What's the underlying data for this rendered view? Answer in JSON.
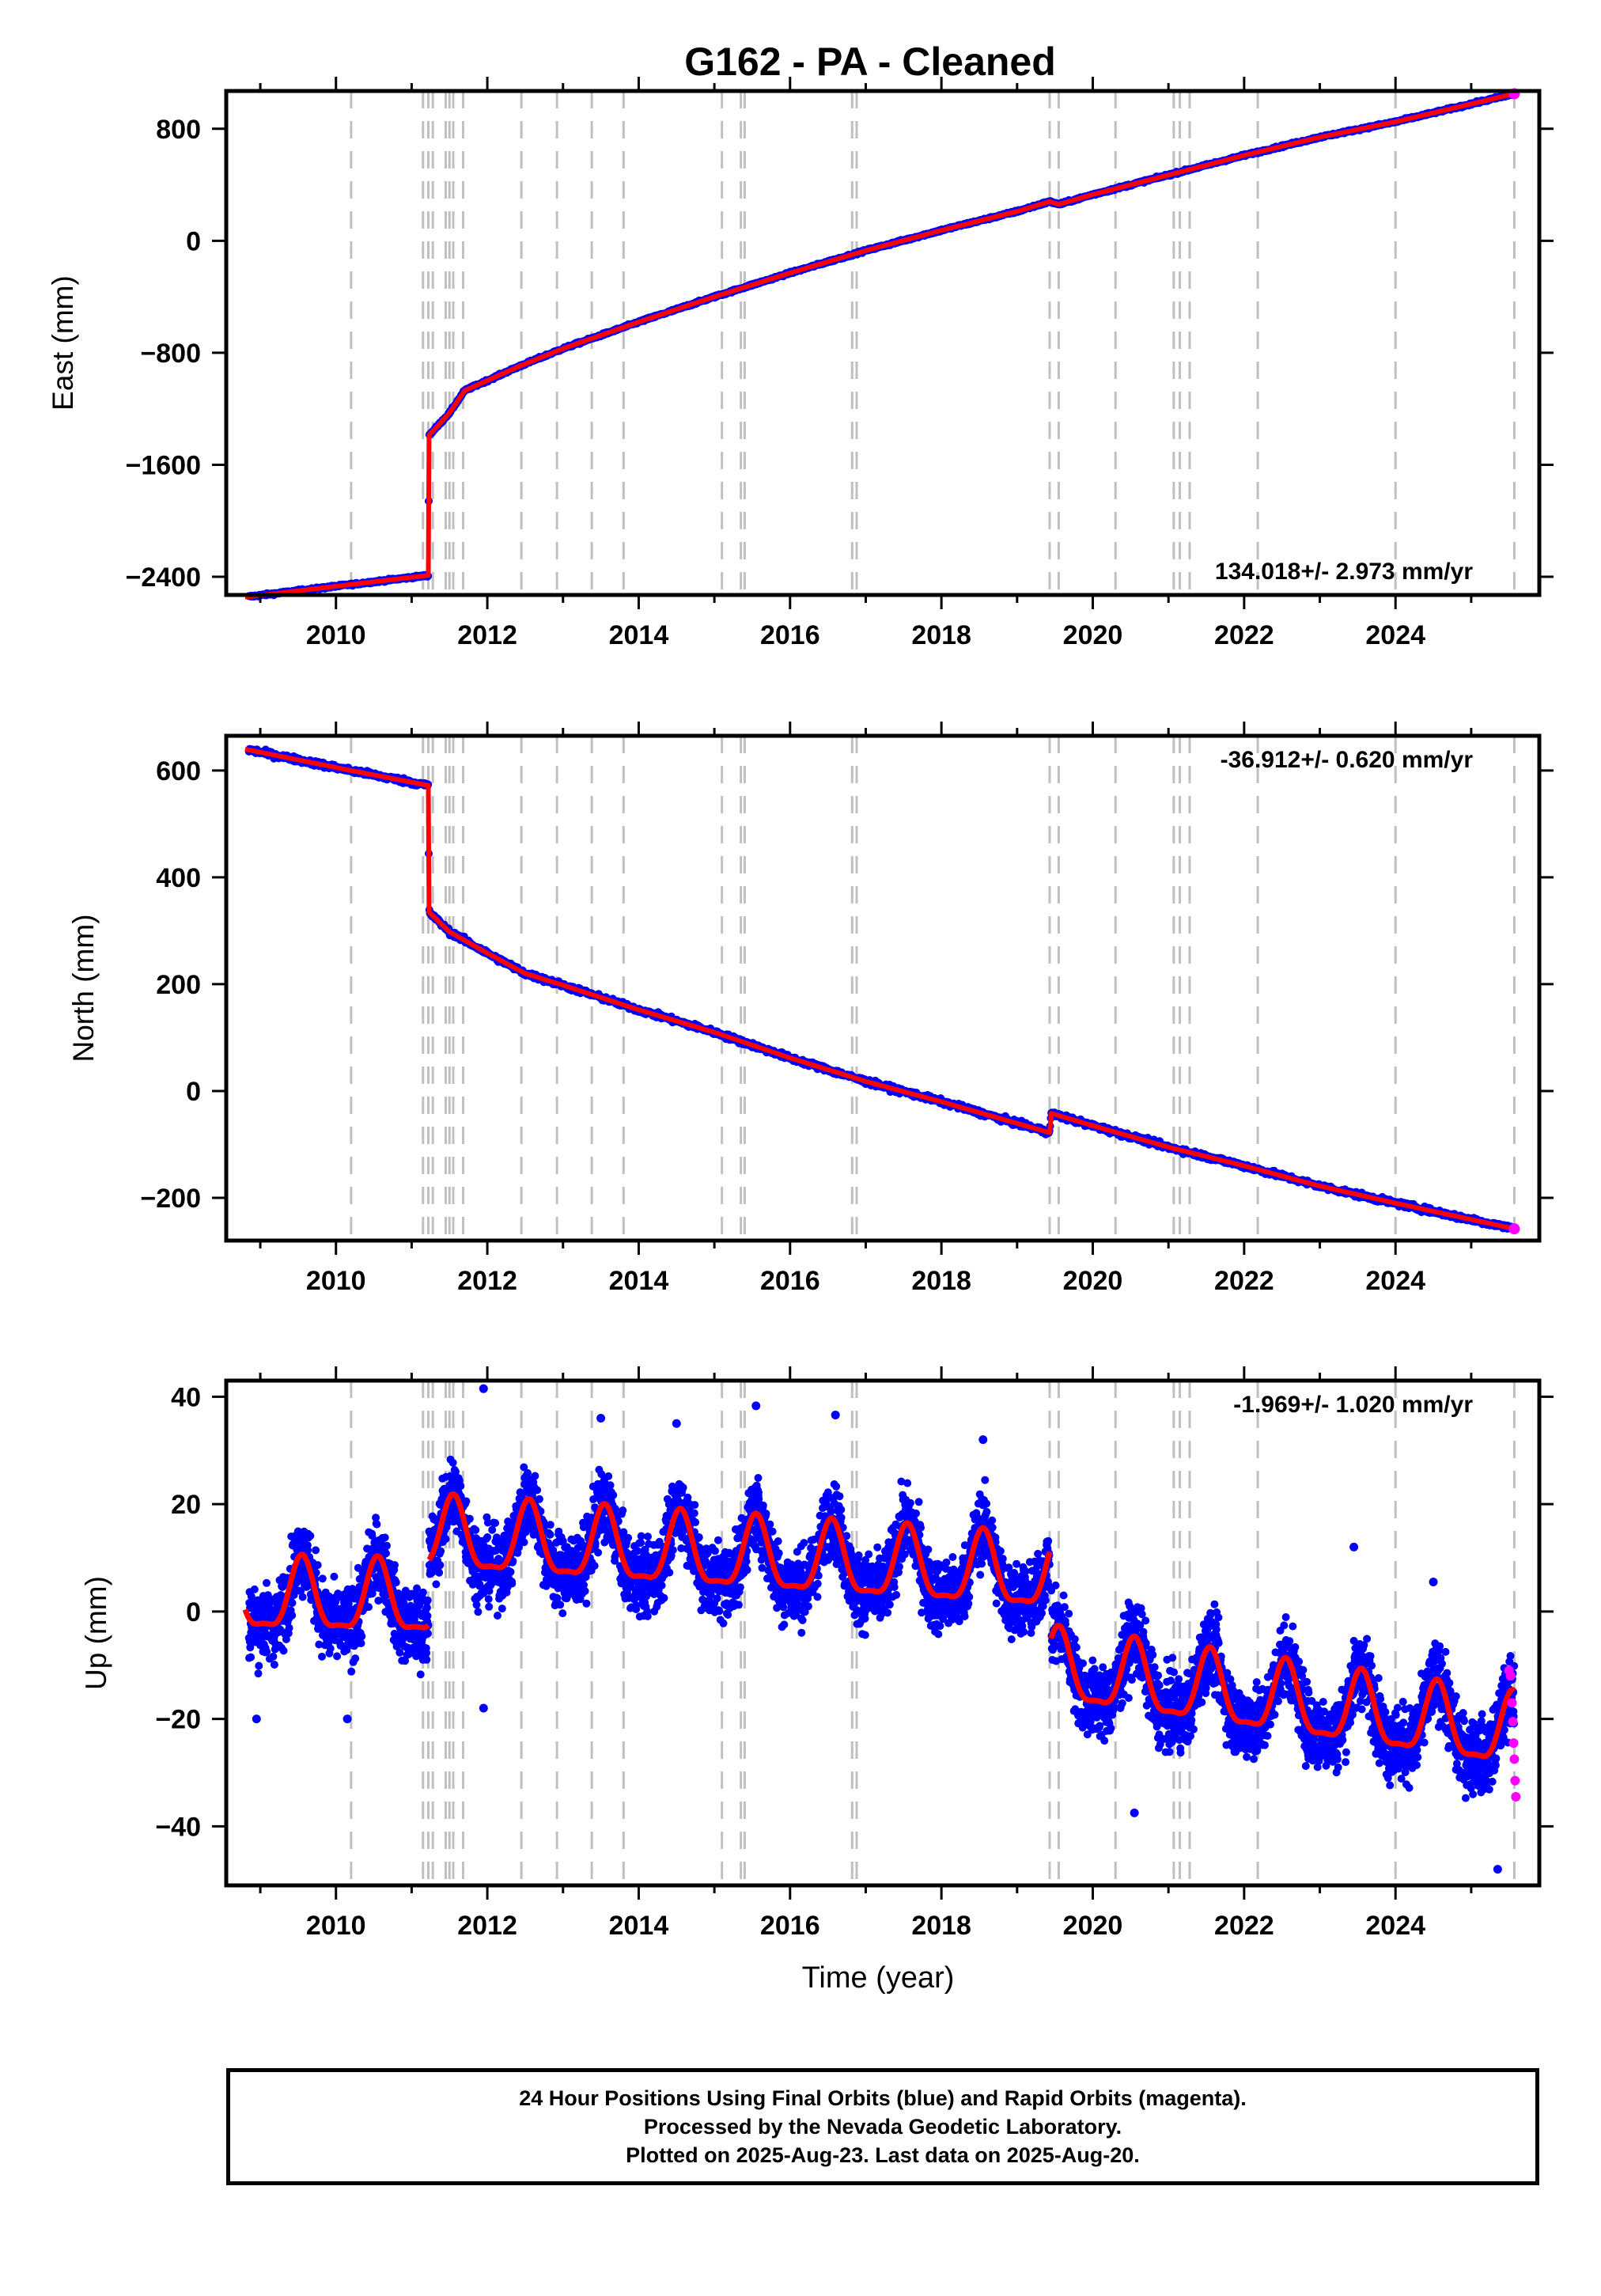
{
  "title": "G162  - PA - Cleaned",
  "colors": {
    "final_orbits": "#0000ff",
    "rapid_orbits": "#ff00ff",
    "model_fit": "#ff0000",
    "event_lines": "#c0c0c0",
    "frame": "#000000"
  },
  "xaxis": {
    "label": "Time (year)",
    "range": [
      2008.55,
      2025.9
    ],
    "ticks": [
      2010,
      2012,
      2014,
      2016,
      2018,
      2020,
      2022,
      2024
    ]
  },
  "event_lines": [
    2010.2,
    2011.15,
    2011.22,
    2011.28,
    2011.45,
    2011.5,
    2011.55,
    2011.68,
    2012.45,
    2012.92,
    2013.38,
    2013.8,
    2015.1,
    2015.35,
    2015.4,
    2016.82,
    2016.88,
    2019.43,
    2019.55,
    2020.3,
    2021.07,
    2021.15,
    2021.28,
    2022.18,
    2024.0,
    2025.57
  ],
  "chart_data": [
    {
      "type": "scatter",
      "panel": "east",
      "ylabel": "East (mm)",
      "ylim": [
        -2530,
        1070
      ],
      "yticks": [
        -2400,
        -1600,
        -800,
        0,
        800
      ],
      "velocity": "134.018+/- 2.973 mm/yr",
      "velocity_position": "bottom-right",
      "grid": false,
      "model_points": [
        [
          2008.8,
          -2545
        ],
        [
          2010.2,
          -2455
        ],
        [
          2011.22,
          -2390
        ],
        [
          2011.23,
          -1390
        ],
        [
          2011.5,
          -1230
        ],
        [
          2011.7,
          -1070
        ],
        [
          2012.45,
          -890
        ],
        [
          2013.0,
          -770
        ],
        [
          2014.0,
          -580
        ],
        [
          2015.0,
          -400
        ],
        [
          2016.0,
          -230
        ],
        [
          2017.0,
          -70
        ],
        [
          2018.0,
          75
        ],
        [
          2019.0,
          210
        ],
        [
          2019.43,
          280
        ],
        [
          2019.55,
          260
        ],
        [
          2020.0,
          330
        ],
        [
          2021.0,
          470
        ],
        [
          2022.0,
          610
        ],
        [
          2023.0,
          740
        ],
        [
          2024.0,
          850
        ],
        [
          2025.57,
          1050
        ]
      ]
    },
    {
      "type": "scatter",
      "panel": "north",
      "ylabel": "North (mm)",
      "ylim": [
        -280,
        665
      ],
      "yticks": [
        -200,
        0,
        200,
        400,
        600
      ],
      "velocity": "-36.912+/- 0.620 mm/yr",
      "velocity_position": "top-right",
      "grid": false,
      "model_points": [
        [
          2008.8,
          640
        ],
        [
          2010.2,
          600
        ],
        [
          2011.22,
          572
        ],
        [
          2011.23,
          335
        ],
        [
          2011.5,
          298
        ],
        [
          2012.0,
          258
        ],
        [
          2012.5,
          220
        ],
        [
          2013.0,
          198
        ],
        [
          2014.0,
          152
        ],
        [
          2015.0,
          110
        ],
        [
          2016.0,
          62
        ],
        [
          2017.0,
          18
        ],
        [
          2018.0,
          -20
        ],
        [
          2019.43,
          -78
        ],
        [
          2019.45,
          -42
        ],
        [
          2020.0,
          -65
        ],
        [
          2021.0,
          -105
        ],
        [
          2022.0,
          -140
        ],
        [
          2023.0,
          -178
        ],
        [
          2024.0,
          -210
        ],
        [
          2025.57,
          -258
        ]
      ]
    },
    {
      "type": "scatter",
      "panel": "up",
      "ylabel": "Up (mm)",
      "ylim": [
        -51,
        43
      ],
      "yticks": [
        -40,
        -20,
        0,
        20,
        40
      ],
      "velocity": "-1.969+/- 1.020 mm/yr",
      "velocity_position": "top-right",
      "grid": false,
      "model": {
        "segments": [
          {
            "start": 2008.8,
            "end": 2011.22,
            "offset": 2.0,
            "trend": -0.3,
            "ref": 2010.0
          },
          {
            "start": 2011.23,
            "end": 2019.43,
            "offset": 10.0,
            "trend": -0.9,
            "ref": 2015.3
          },
          {
            "start": 2019.45,
            "end": 2025.57,
            "offset": -17.0,
            "trend": -2.0,
            "ref": 2022.5
          }
        ],
        "annual_amplitude": 6.5,
        "annual_peak_phase": 0.55,
        "semiannual_amplitude": 2.0
      },
      "outliers": [
        [
          2011.95,
          41.5
        ],
        [
          2015.55,
          38.3
        ],
        [
          2016.6,
          36.6
        ],
        [
          2013.5,
          36.0
        ],
        [
          2014.5,
          35.0
        ],
        [
          2018.55,
          32.0
        ],
        [
          2023.45,
          12.0
        ],
        [
          2024.5,
          5.5
        ],
        [
          2011.95,
          -18.0
        ],
        [
          2008.95,
          -20.0
        ],
        [
          2010.15,
          -20.0
        ],
        [
          2020.55,
          -37.5
        ],
        [
          2025.35,
          -48.0
        ]
      ],
      "rapid_points": [
        [
          2025.5,
          -11.0
        ],
        [
          2025.52,
          -12.0
        ],
        [
          2025.54,
          -17.0
        ],
        [
          2025.55,
          -20.5
        ],
        [
          2025.56,
          -24.5
        ],
        [
          2025.57,
          -27.5
        ],
        [
          2025.58,
          -31.5
        ],
        [
          2025.59,
          -34.5
        ]
      ]
    }
  ],
  "footer": {
    "line1": "24 Hour Positions Using Final Orbits (blue) and Rapid Orbits (magenta).",
    "line2": "Processed by the Nevada Geodetic Laboratory.",
    "line3": "Plotted on 2025-Aug-23. Last data on 2025-Aug-20."
  }
}
